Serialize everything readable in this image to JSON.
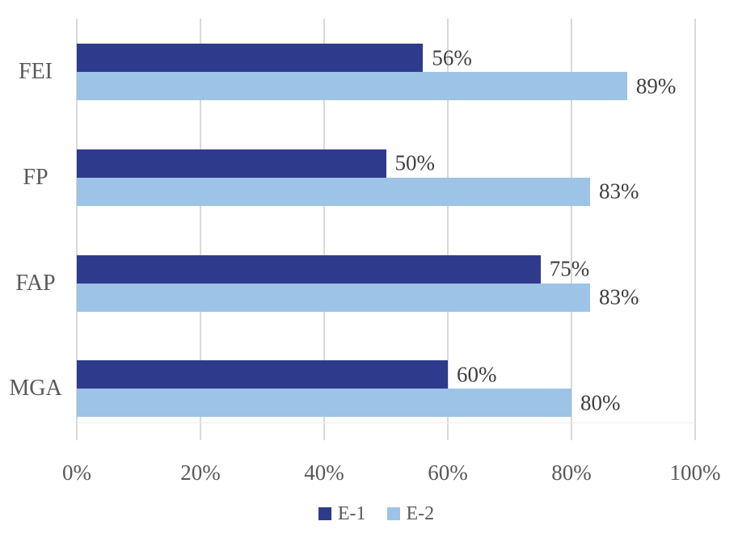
{
  "chart_data": {
    "type": "bar",
    "orientation": "horizontal",
    "title": "",
    "xlabel": "",
    "ylabel": "",
    "categories": [
      "FEI",
      "FP",
      "FAP",
      "MGA"
    ],
    "series": [
      {
        "name": "E-1",
        "color": "#2E3B8D",
        "values": [
          56,
          50,
          75,
          60
        ]
      },
      {
        "name": "E-2",
        "color": "#9DC3E6",
        "values": [
          89,
          83,
          83,
          80
        ]
      }
    ],
    "data_labels": [
      [
        "56%",
        "50%",
        "75%",
        "60%"
      ],
      [
        "89%",
        "83%",
        "83%",
        "80%"
      ]
    ],
    "x_ticks": [
      "0%",
      "20%",
      "40%",
      "60%",
      "80%",
      "100%"
    ],
    "xlim": [
      0,
      100
    ],
    "grid": "vertical-major",
    "legend_position": "bottom-center",
    "colors": {
      "gridline": "#D9D9D9",
      "axis_line": "#EDEDED",
      "tick_text": "#595959",
      "category_text": "#595959",
      "data_label_text": "#3F3F3F",
      "legend_text": "#595959",
      "background": "#FFFFFF"
    }
  }
}
